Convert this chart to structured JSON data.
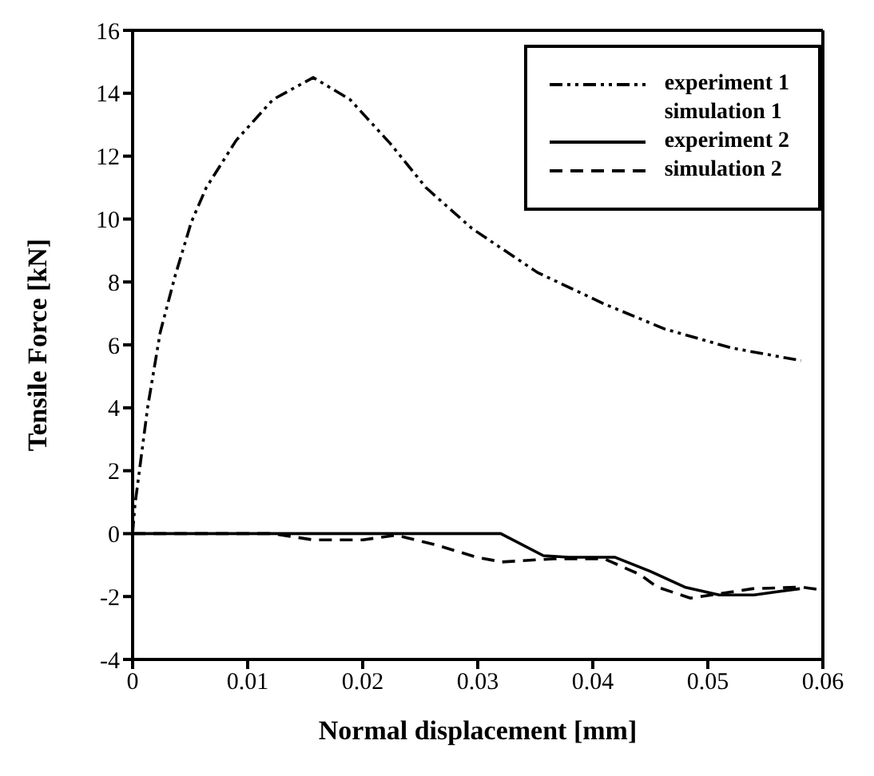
{
  "chart_data": {
    "type": "line",
    "xlabel": "Normal displacement [mm]",
    "ylabel": "Tensile Force [kN]",
    "xlim": [
      0,
      0.06
    ],
    "xticks": [
      0,
      0.01,
      0.02,
      0.03,
      0.04,
      0.05,
      0.06
    ],
    "ylim": [
      -4,
      16
    ],
    "yticks": [
      -4,
      -2,
      0,
      2,
      4,
      6,
      8,
      10,
      12,
      14,
      16
    ],
    "legend": "top right",
    "marker": "none",
    "series": [
      {
        "name": "experiment 1",
        "color": "#000000",
        "line_style": "dashdotdot",
        "x": [
          0,
          0.0002,
          0.0013,
          0.0024,
          0.0037,
          0.0051,
          0.0064,
          0.009,
          0.0122,
          0.0157,
          0.0189,
          0.0224,
          0.0255,
          0.0295,
          0.0352,
          0.041,
          0.0463,
          0.0521,
          0.0581
        ],
        "values": [
          0,
          0.9,
          4.0,
          6.4,
          8.2,
          9.9,
          11.0,
          12.5,
          13.8,
          14.5,
          13.8,
          12.4,
          11.0,
          9.7,
          8.3,
          7.3,
          6.5,
          5.9,
          5.5
        ]
      },
      {
        "name": "simulation 1",
        "color": "#000000"
      },
      {
        "name": "experiment 2",
        "color": "#000000",
        "line_style": "solid",
        "x": [
          0,
          0.032,
          0.0357,
          0.0379,
          0.0419,
          0.045,
          0.048,
          0.051,
          0.054,
          0.056,
          0.058
        ],
        "values": [
          0,
          0,
          -0.7,
          -0.75,
          -0.75,
          -1.2,
          -1.7,
          -1.95,
          -1.95,
          -1.85,
          -1.75
        ]
      },
      {
        "name": "simulation 2",
        "color": "#000000",
        "line_style": "dashed",
        "x": [
          0,
          0.0122,
          0.0157,
          0.02,
          0.0229,
          0.0263,
          0.0299,
          0.0321,
          0.0366,
          0.041,
          0.0441,
          0.0456,
          0.0485,
          0.0512,
          0.0539,
          0.0582,
          0.06
        ],
        "values": [
          0,
          0,
          -0.2,
          -0.2,
          -0.05,
          -0.35,
          -0.75,
          -0.9,
          -0.8,
          -0.8,
          -1.3,
          -1.7,
          -2.05,
          -1.9,
          -1.75,
          -1.7,
          -1.8
        ]
      }
    ]
  }
}
